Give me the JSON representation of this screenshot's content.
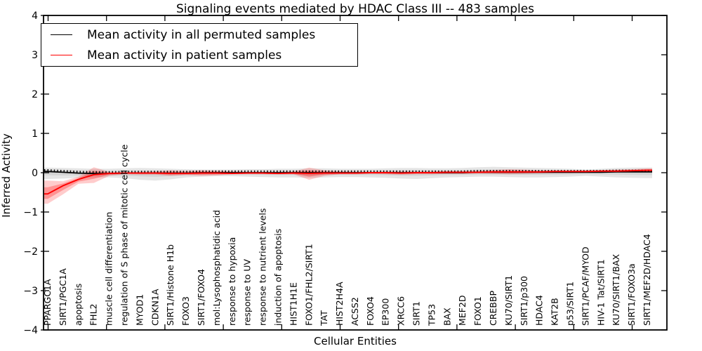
{
  "figure": {
    "title": "Signaling events mediated by HDAC Class III -- 483 samples",
    "xlabel": "Cellular Entities",
    "ylabel": "Inferred Activity",
    "legend": [
      {
        "label": "Mean activity in all permuted samples",
        "color": "#000000"
      },
      {
        "label": "Mean activity in patient samples",
        "color": "#ff0000"
      }
    ]
  },
  "chart_data": {
    "type": "line",
    "title": "Signaling events mediated by HDAC Class III -- 483 samples",
    "xlabel": "Cellular Entities",
    "ylabel": "Inferred Activity",
    "ylim": [
      -4,
      4
    ],
    "yticks": [
      4,
      3,
      2,
      1,
      0,
      -1,
      -2,
      -3,
      -4
    ],
    "ytick_labels": [
      "4",
      "3",
      "2",
      "1",
      "0",
      "−1",
      "−2",
      "−3",
      "−4"
    ],
    "grid": false,
    "legend_position": "upper left",
    "categories": [
      "PPARGC1A",
      "SIRT1/PGC1A",
      "apoptosis",
      "FHL2",
      "muscle cell differentiation",
      "regulation of S phase of mitotic cell cycle",
      "MYOD1",
      "CDKN1A",
      "SIRT1/Histone H1b",
      "FOXO3",
      "SIRT1/FOXO4",
      "mol:Lysophosphatidic acid",
      "response to hypoxia",
      "response to UV",
      "response to nutrient levels",
      "induction of apoptosis",
      "HIST1H1E",
      "FOXO1/FHL2/SIRT1",
      "TAT",
      "HIST2H4A",
      "ACSS2",
      "FOXO4",
      "EP300",
      "XRCC6",
      "SIRT1",
      "TP53",
      "BAX",
      "MEF2D",
      "FOXO1",
      "CREBBP",
      "KU70/SIRT1",
      "SIRT1/p300",
      "HDAC4",
      "KAT2B",
      "p53/SIRT1",
      "SIRT1/PCAF/MYOD",
      "HIV-1 Tat/SIRT1",
      "KU70/SIRT1/BAX",
      "SIRT1/FOXO3a",
      "SIRT1/MEF2D/HDAC4"
    ],
    "series": [
      {
        "name": "Mean activity in all permuted samples",
        "color": "#000000",
        "values": [
          0.03,
          0.01,
          -0.01,
          -0.02,
          -0.02,
          -0.01,
          -0.01,
          -0.01,
          -0.01,
          -0.01,
          0,
          0,
          0,
          0,
          0,
          0,
          0,
          0,
          0,
          0,
          0,
          0,
          0,
          0,
          0,
          0,
          0,
          0,
          0.01,
          0.01,
          0.01,
          0.01,
          0.01,
          0.01,
          0.01,
          0.01,
          0.01,
          0.02,
          0.02,
          0.02
        ]
      },
      {
        "name": "Mean activity in patient samples",
        "color": "#ff0000",
        "values": [
          -0.54,
          -0.33,
          -0.17,
          -0.05,
          -0.02,
          -0.01,
          -0.01,
          -0.01,
          -0.02,
          -0.02,
          -0.01,
          -0.01,
          -0.02,
          -0.01,
          -0.01,
          -0.02,
          -0.01,
          -0.02,
          -0.01,
          -0.01,
          -0.01,
          0,
          0,
          -0.01,
          0,
          0,
          0.01,
          0.01,
          0.01,
          0.02,
          0.02,
          0.02,
          0.02,
          0.03,
          0.03,
          0.03,
          0.04,
          0.04,
          0.05,
          0.06
        ]
      }
    ],
    "bands": [
      {
        "name": "permuted-activity-range",
        "color": "rgba(0,0,0,0.10)",
        "inner_color": "rgba(0,0,0,0.07)",
        "upper": [
          0.13,
          0.12,
          0.11,
          0.1,
          0.1,
          0.11,
          0.12,
          0.11,
          0.1,
          0.09,
          0.08,
          0.08,
          0.08,
          0.09,
          0.09,
          0.1,
          0.1,
          0.11,
          0.11,
          0.1,
          0.1,
          0.1,
          0.11,
          0.12,
          0.12,
          0.11,
          0.11,
          0.12,
          0.14,
          0.15,
          0.14,
          0.13,
          0.12,
          0.11,
          0.1,
          0.08,
          0.1,
          0.12,
          0.13,
          0.13
        ],
        "lower": [
          -0.16,
          -0.15,
          -0.13,
          -0.12,
          -0.12,
          -0.14,
          -0.18,
          -0.2,
          -0.17,
          -0.12,
          -0.1,
          -0.09,
          -0.09,
          -0.1,
          -0.11,
          -0.12,
          -0.12,
          -0.13,
          -0.12,
          -0.11,
          -0.11,
          -0.12,
          -0.13,
          -0.15,
          -0.16,
          -0.14,
          -0.12,
          -0.11,
          -0.1,
          -0.1,
          -0.11,
          -0.12,
          -0.12,
          -0.11,
          -0.1,
          -0.08,
          -0.1,
          -0.12,
          -0.13,
          -0.14
        ],
        "series": 0
      },
      {
        "name": "patient-activity-range",
        "color": "rgba(255,0,0,0.20)",
        "inner_color": "rgba(255,0,0,0.28)",
        "upper": [
          -0.2,
          -0.22,
          -0.1,
          0.14,
          0.02,
          0.01,
          0.02,
          0.03,
          0.06,
          0.04,
          0.06,
          0.05,
          0.03,
          0.02,
          0.02,
          0.02,
          0.03,
          0.13,
          0.06,
          0.03,
          0.02,
          0.02,
          0.03,
          0.03,
          0.03,
          0.03,
          0.04,
          0.04,
          0.05,
          0.07,
          0.09,
          0.08,
          0.06,
          0.06,
          0.06,
          0.06,
          0.07,
          0.08,
          0.09,
          0.11
        ],
        "lower": [
          -0.79,
          -0.55,
          -0.28,
          -0.26,
          -0.08,
          -0.04,
          -0.05,
          -0.05,
          -0.08,
          -0.06,
          -0.08,
          -0.07,
          -0.04,
          -0.03,
          -0.03,
          -0.04,
          -0.04,
          -0.18,
          -0.08,
          -0.04,
          -0.04,
          -0.03,
          -0.04,
          -0.05,
          -0.04,
          -0.04,
          -0.03,
          -0.03,
          -0.02,
          -0.03,
          -0.04,
          -0.03,
          -0.02,
          -0.01,
          -0.01,
          0.0,
          0.0,
          0.01,
          0.01,
          0.01
        ],
        "series": 1
      }
    ]
  }
}
